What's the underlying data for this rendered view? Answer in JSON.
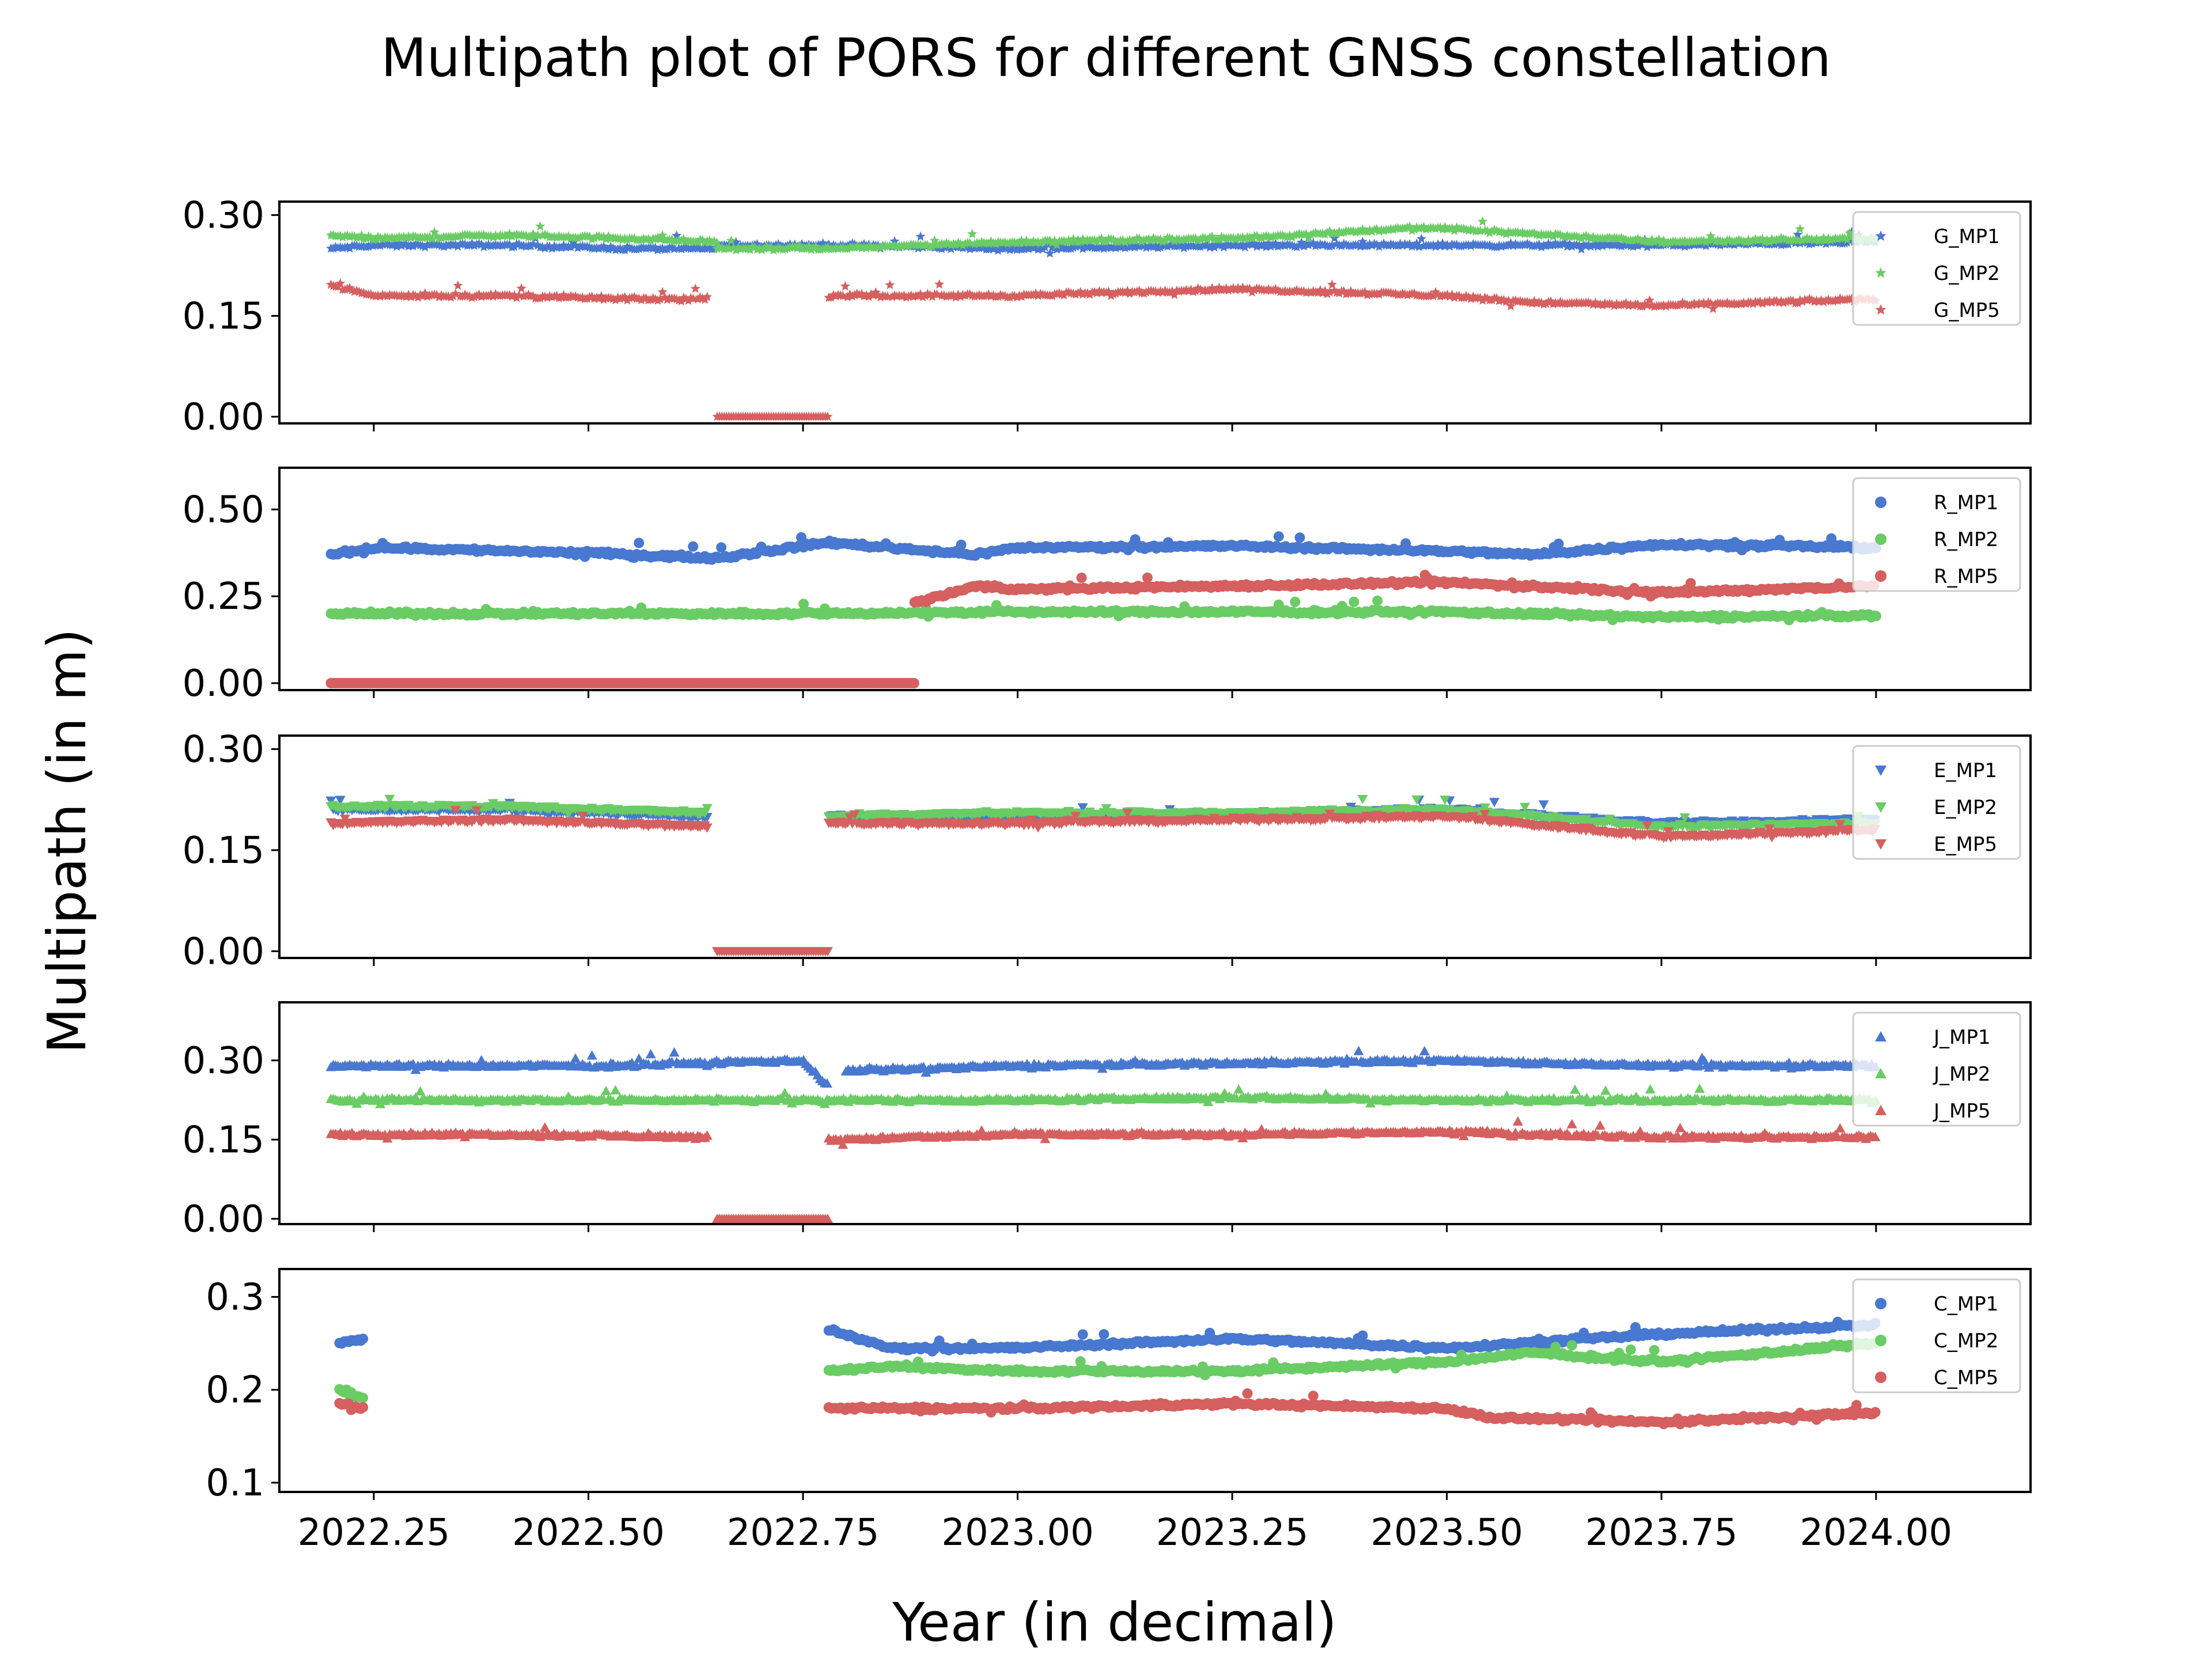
{
  "chart_data": {
    "type": "scatter",
    "title": "Multipath plot of PORS for different GNSS constellation",
    "xlabel": "Year (in decimal)",
    "ylabel": "Multipath (in m)",
    "xlim": [
      2022.14,
      2024.18
    ],
    "xticks": [
      2022.25,
      2022.5,
      2022.75,
      2023.0,
      2023.25,
      2023.5,
      2023.75,
      2024.0
    ],
    "xtick_labels": [
      "2022.25",
      "2022.50",
      "2022.75",
      "2023.00",
      "2023.25",
      "2023.50",
      "2023.75",
      "2024.00"
    ],
    "x_start": 2022.2,
    "x_end": 2024.0,
    "colors": {
      "MP1": "#4878d0",
      "MP2": "#6acc64",
      "MP5": "#d65f5f"
    },
    "legend_position": "upper right",
    "panels": [
      {
        "constellation": "G",
        "marker": "star",
        "ylim": [
          -0.01,
          0.32
        ],
        "yticks": [
          0.0,
          0.15,
          0.3
        ],
        "ytick_labels": [
          "0.00",
          "0.15",
          "0.30"
        ],
        "series": [
          {
            "name": "G_MP1",
            "key": "MP1",
            "segments": [
              {
                "x": [
                  2022.2,
                  2022.25,
                  2022.4,
                  2022.55,
                  2022.65
                ],
                "y": [
                  0.25,
                  0.255,
                  0.255,
                  0.25,
                  0.25
                ]
              },
              {
                "x": [
                  2022.65,
                  2022.78
                ],
                "y": [
                  0.255,
                  0.255
                ]
              },
              {
                "x": [
                  2022.78,
                  2023.0,
                  2023.25,
                  2023.5,
                  2023.75,
                  2024.0
                ],
                "y": [
                  0.255,
                  0.25,
                  0.255,
                  0.255,
                  0.255,
                  0.26
                ]
              }
            ]
          },
          {
            "name": "G_MP2",
            "key": "MP2",
            "segments": [
              {
                "x": [
                  2022.2,
                  2022.25,
                  2022.4,
                  2022.55,
                  2022.65
                ],
                "y": [
                  0.27,
                  0.265,
                  0.27,
                  0.265,
                  0.26
                ]
              },
              {
                "x": [
                  2022.65,
                  2022.78
                ],
                "y": [
                  0.25,
                  0.25
                ]
              },
              {
                "x": [
                  2022.78,
                  2023.0,
                  2023.25,
                  2023.45,
                  2023.5,
                  2023.75,
                  2024.0
                ],
                "y": [
                  0.25,
                  0.26,
                  0.265,
                  0.28,
                  0.28,
                  0.26,
                  0.265
                ]
              }
            ]
          },
          {
            "name": "G_MP5",
            "key": "MP5",
            "segments": [
              {
                "x": [
                  2022.2,
                  2022.25,
                  2022.4,
                  2022.55,
                  2022.64
                ],
                "y": [
                  0.195,
                  0.18,
                  0.18,
                  0.175,
                  0.175
                ]
              },
              {
                "x": [
                  2022.65,
                  2022.78
                ],
                "y": [
                  0.0,
                  0.0
                ]
              },
              {
                "x": [
                  2022.78,
                  2023.0,
                  2023.25,
                  2023.5,
                  2023.6,
                  2023.75,
                  2024.0
                ],
                "y": [
                  0.18,
                  0.18,
                  0.19,
                  0.18,
                  0.17,
                  0.165,
                  0.175
                ]
              }
            ]
          }
        ]
      },
      {
        "constellation": "R",
        "marker": "circle",
        "ylim": [
          -0.02,
          0.62
        ],
        "yticks": [
          0.0,
          0.25,
          0.5
        ],
        "ytick_labels": [
          "0.00",
          "0.25",
          "0.50"
        ],
        "series": [
          {
            "name": "R_MP1",
            "key": "MP1",
            "segments": [
              {
                "x": [
                  2022.2,
                  2022.25,
                  2022.5,
                  2022.65,
                  2022.78,
                  2022.95,
                  2023.0,
                  2023.25,
                  2023.5,
                  2023.6,
                  2023.75,
                  2024.0
                ],
                "y": [
                  0.37,
                  0.39,
                  0.375,
                  0.36,
                  0.405,
                  0.37,
                  0.39,
                  0.395,
                  0.38,
                  0.37,
                  0.4,
                  0.39
                ]
              }
            ]
          },
          {
            "name": "R_MP2",
            "key": "MP2",
            "segments": [
              {
                "x": [
                  2022.2,
                  2022.25,
                  2022.5,
                  2022.75,
                  2023.0,
                  2023.25,
                  2023.5,
                  2023.75,
                  2024.0
                ],
                "y": [
                  0.2,
                  0.2,
                  0.2,
                  0.2,
                  0.205,
                  0.205,
                  0.205,
                  0.19,
                  0.195
                ]
              }
            ]
          },
          {
            "name": "R_MP5",
            "key": "MP5",
            "segments": [
              {
                "x": [
                  2022.2,
                  2022.88
                ],
                "y": [
                  0.0,
                  0.0
                ]
              },
              {
                "x": [
                  2022.88,
                  2022.95,
                  2023.0,
                  2023.25,
                  2023.5,
                  2023.75,
                  2024.0
                ],
                "y": [
                  0.23,
                  0.28,
                  0.27,
                  0.28,
                  0.29,
                  0.26,
                  0.28
                ]
              }
            ]
          }
        ]
      },
      {
        "constellation": "E",
        "marker": "triangle-down",
        "ylim": [
          -0.01,
          0.32
        ],
        "yticks": [
          0.0,
          0.15,
          0.3
        ],
        "ytick_labels": [
          "0.00",
          "0.15",
          "0.30"
        ],
        "series": [
          {
            "name": "E_MP1",
            "key": "MP1",
            "segments": [
              {
                "x": [
                  2022.2,
                  2022.4,
                  2022.64
                ],
                "y": [
                  0.21,
                  0.21,
                  0.2
                ]
              },
              {
                "x": [
                  2022.78,
                  2023.0,
                  2023.25,
                  2023.5,
                  2023.75,
                  2024.0
                ],
                "y": [
                  0.2,
                  0.2,
                  0.205,
                  0.21,
                  0.19,
                  0.195
                ]
              }
            ]
          },
          {
            "name": "E_MP2",
            "key": "MP2",
            "segments": [
              {
                "x": [
                  2022.2,
                  2022.4,
                  2022.64
                ],
                "y": [
                  0.215,
                  0.215,
                  0.205
                ]
              },
              {
                "x": [
                  2022.78,
                  2023.0,
                  2023.25,
                  2023.5,
                  2023.75,
                  2024.0
                ],
                "y": [
                  0.2,
                  0.205,
                  0.205,
                  0.21,
                  0.185,
                  0.19
                ]
              }
            ]
          },
          {
            "name": "E_MP5",
            "key": "MP5",
            "segments": [
              {
                "x": [
                  2022.2,
                  2022.4,
                  2022.64
                ],
                "y": [
                  0.19,
                  0.195,
                  0.185
                ]
              },
              {
                "x": [
                  2022.65,
                  2022.78
                ],
                "y": [
                  0.0,
                  0.0
                ]
              },
              {
                "x": [
                  2022.78,
                  2023.0,
                  2023.25,
                  2023.5,
                  2023.75,
                  2024.0
                ],
                "y": [
                  0.19,
                  0.19,
                  0.195,
                  0.2,
                  0.17,
                  0.18
                ]
              }
            ]
          }
        ]
      },
      {
        "constellation": "J",
        "marker": "triangle-up",
        "ylim": [
          -0.01,
          0.41
        ],
        "yticks": [
          0.0,
          0.15,
          0.3
        ],
        "ytick_labels": [
          "0.00",
          "0.15",
          "0.30"
        ],
        "series": [
          {
            "name": "J_MP1",
            "key": "MP1",
            "segments": [
              {
                "x": [
                  2022.2,
                  2022.5,
                  2022.75,
                  2022.78
                ],
                "y": [
                  0.29,
                  0.29,
                  0.3,
                  0.25
                ]
              },
              {
                "x": [
                  2022.8,
                  2023.0,
                  2023.25,
                  2023.5,
                  2023.75,
                  2024.0
                ],
                "y": [
                  0.28,
                  0.29,
                  0.295,
                  0.3,
                  0.29,
                  0.29
                ]
              }
            ]
          },
          {
            "name": "J_MP2",
            "key": "MP2",
            "segments": [
              {
                "x": [
                  2022.2,
                  2022.5,
                  2022.75,
                  2023.0,
                  2023.25,
                  2023.5,
                  2023.75,
                  2024.0
                ],
                "y": [
                  0.225,
                  0.225,
                  0.225,
                  0.225,
                  0.23,
                  0.225,
                  0.225,
                  0.225
                ]
              }
            ]
          },
          {
            "name": "J_MP5",
            "key": "MP5",
            "segments": [
              {
                "x": [
                  2022.2,
                  2022.4,
                  2022.64
                ],
                "y": [
                  0.16,
                  0.16,
                  0.155
                ]
              },
              {
                "x": [
                  2022.65,
                  2022.78
                ],
                "y": [
                  0.0,
                  0.0
                ]
              },
              {
                "x": [
                  2022.78,
                  2023.0,
                  2023.25,
                  2023.5,
                  2023.75,
                  2024.0
                ],
                "y": [
                  0.15,
                  0.16,
                  0.16,
                  0.165,
                  0.155,
                  0.155
                ]
              }
            ]
          }
        ]
      },
      {
        "constellation": "C",
        "marker": "circle",
        "ylim": [
          0.09,
          0.33
        ],
        "yticks": [
          0.1,
          0.2,
          0.3
        ],
        "ytick_labels": [
          "0.1",
          "0.2",
          "0.3"
        ],
        "series": [
          {
            "name": "C_MP1",
            "key": "MP1",
            "segments": [
              {
                "x": [
                  2022.21,
                  2022.24
                ],
                "y": [
                  0.25,
                  0.255
                ]
              },
              {
                "x": [
                  2022.78,
                  2022.85,
                  2023.0,
                  2023.25,
                  2023.5,
                  2023.75,
                  2024.0
                ],
                "y": [
                  0.265,
                  0.245,
                  0.245,
                  0.255,
                  0.245,
                  0.26,
                  0.27
                ]
              }
            ]
          },
          {
            "name": "C_MP2",
            "key": "MP2",
            "segments": [
              {
                "x": [
                  2022.21,
                  2022.24
                ],
                "y": [
                  0.2,
                  0.19
                ]
              },
              {
                "x": [
                  2022.78,
                  2022.85,
                  2023.0,
                  2023.25,
                  2023.5,
                  2023.6,
                  2023.75,
                  2024.0
                ],
                "y": [
                  0.22,
                  0.225,
                  0.22,
                  0.22,
                  0.23,
                  0.24,
                  0.23,
                  0.25
                ]
              }
            ]
          },
          {
            "name": "C_MP5",
            "key": "MP5",
            "segments": [
              {
                "x": [
                  2022.21,
                  2022.24
                ],
                "y": [
                  0.185,
                  0.18
                ]
              },
              {
                "x": [
                  2022.78,
                  2023.0,
                  2023.25,
                  2023.5,
                  2023.55,
                  2023.75,
                  2024.0
                ],
                "y": [
                  0.18,
                  0.18,
                  0.185,
                  0.18,
                  0.17,
                  0.165,
                  0.175
                ]
              }
            ]
          }
        ]
      }
    ]
  }
}
